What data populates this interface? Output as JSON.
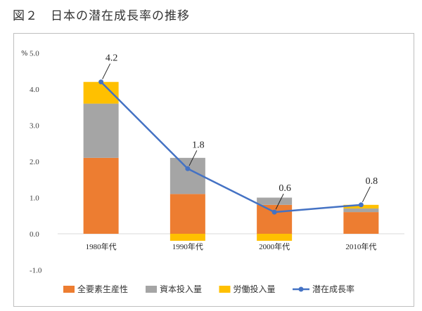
{
  "figure_title": "図２　日本の潜在成長率の推移",
  "chart_data": {
    "type": "bar",
    "stacked": true,
    "title": "日本の潜在成長率の推移",
    "unit_label": "%",
    "ylim": [
      -1.0,
      5.0
    ],
    "yticks": [
      "5.0",
      "4.0",
      "3.0",
      "2.0",
      "1.0",
      "0.0",
      "-1.0"
    ],
    "ytick_values": [
      5,
      4,
      3,
      2,
      1,
      0,
      -1
    ],
    "categories": [
      "1980年代",
      "1990年代",
      "2000年代",
      "2010年代"
    ],
    "series": [
      {
        "name": "全要素生産性",
        "type": "bar",
        "color": "#ED7D31",
        "values": [
          2.1,
          1.1,
          0.8,
          0.6
        ]
      },
      {
        "name": "資本投入量",
        "type": "bar",
        "color": "#A5A5A5",
        "values": [
          1.5,
          1.0,
          0.2,
          0.1
        ]
      },
      {
        "name": "労働投入量",
        "type": "bar",
        "color": "#FFC000",
        "values": [
          0.6,
          -0.3,
          -0.3,
          0.1
        ]
      },
      {
        "name": "潜在成長率",
        "type": "line",
        "color": "#4472C4",
        "values": [
          4.2,
          1.8,
          0.6,
          0.8
        ]
      }
    ],
    "data_labels": [
      "4.2",
      "1.8",
      "0.6",
      "0.8"
    ],
    "legend_position": "bottom"
  }
}
